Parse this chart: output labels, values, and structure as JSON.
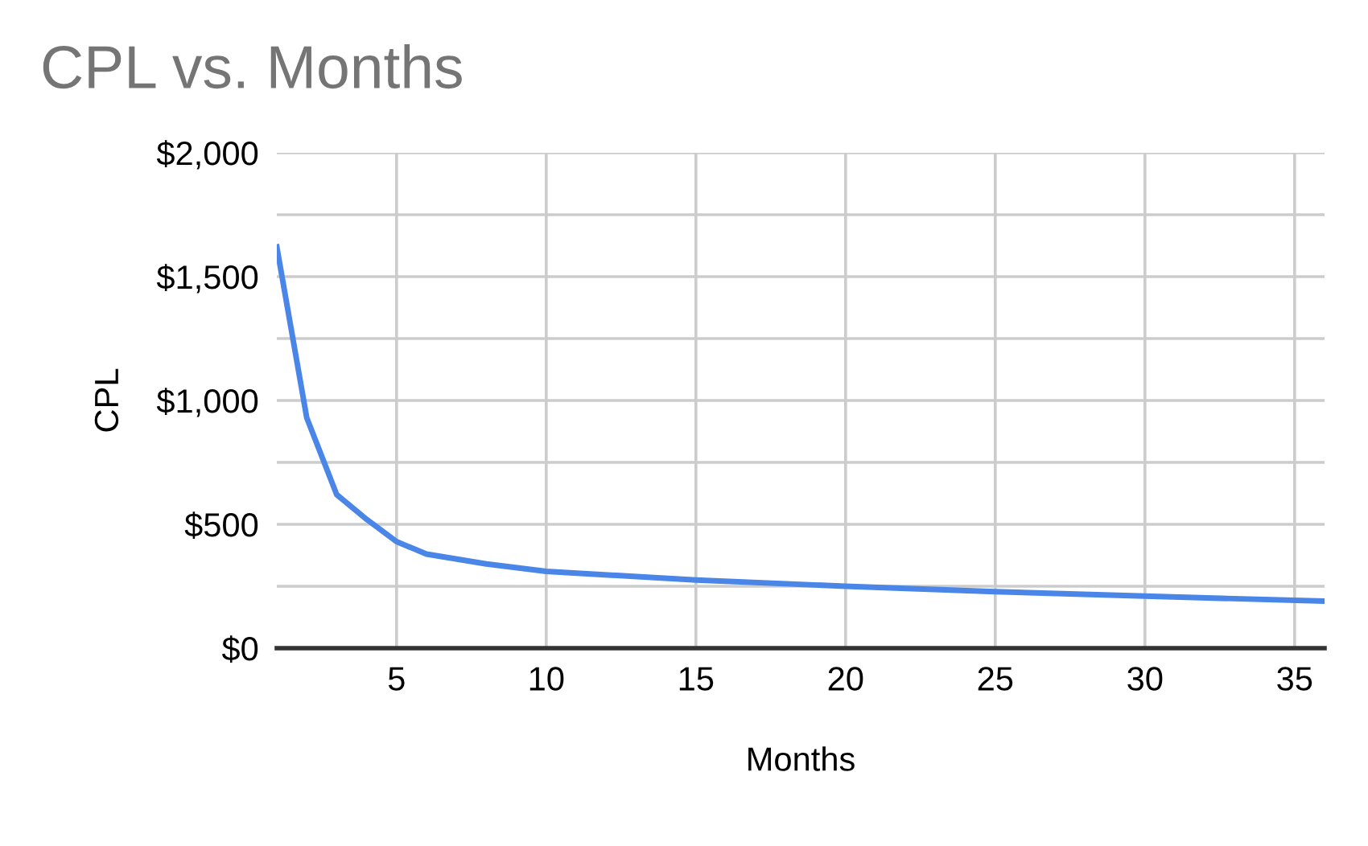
{
  "chart_data": {
    "type": "line",
    "title": "CPL vs. Months",
    "xlabel": "Months",
    "ylabel": "CPL",
    "x": [
      1,
      2,
      3,
      4,
      5,
      6,
      8,
      10,
      15,
      20,
      25,
      30,
      36
    ],
    "series": [
      {
        "color": "#4a86e8",
        "values": [
          1620,
          930,
          620,
          520,
          430,
          380,
          340,
          310,
          275,
          250,
          228,
          210,
          190
        ]
      }
    ],
    "xlim": [
      1,
      36
    ],
    "xticks": [
      5,
      10,
      15,
      20,
      25,
      30,
      35
    ],
    "ylim": [
      0,
      2000
    ],
    "yticks": [
      {
        "value": 0,
        "label": "$0"
      },
      {
        "value": 250,
        "label": null
      },
      {
        "value": 500,
        "label": "$500"
      },
      {
        "value": 750,
        "label": null
      },
      {
        "value": 1000,
        "label": "$1,000"
      },
      {
        "value": 1250,
        "label": null
      },
      {
        "value": 1500,
        "label": "$1,500"
      },
      {
        "value": 1750,
        "label": null
      },
      {
        "value": 2000,
        "label": "$2,000"
      }
    ],
    "grid": true,
    "legend": false,
    "marker": "none",
    "line_style": "solid"
  }
}
